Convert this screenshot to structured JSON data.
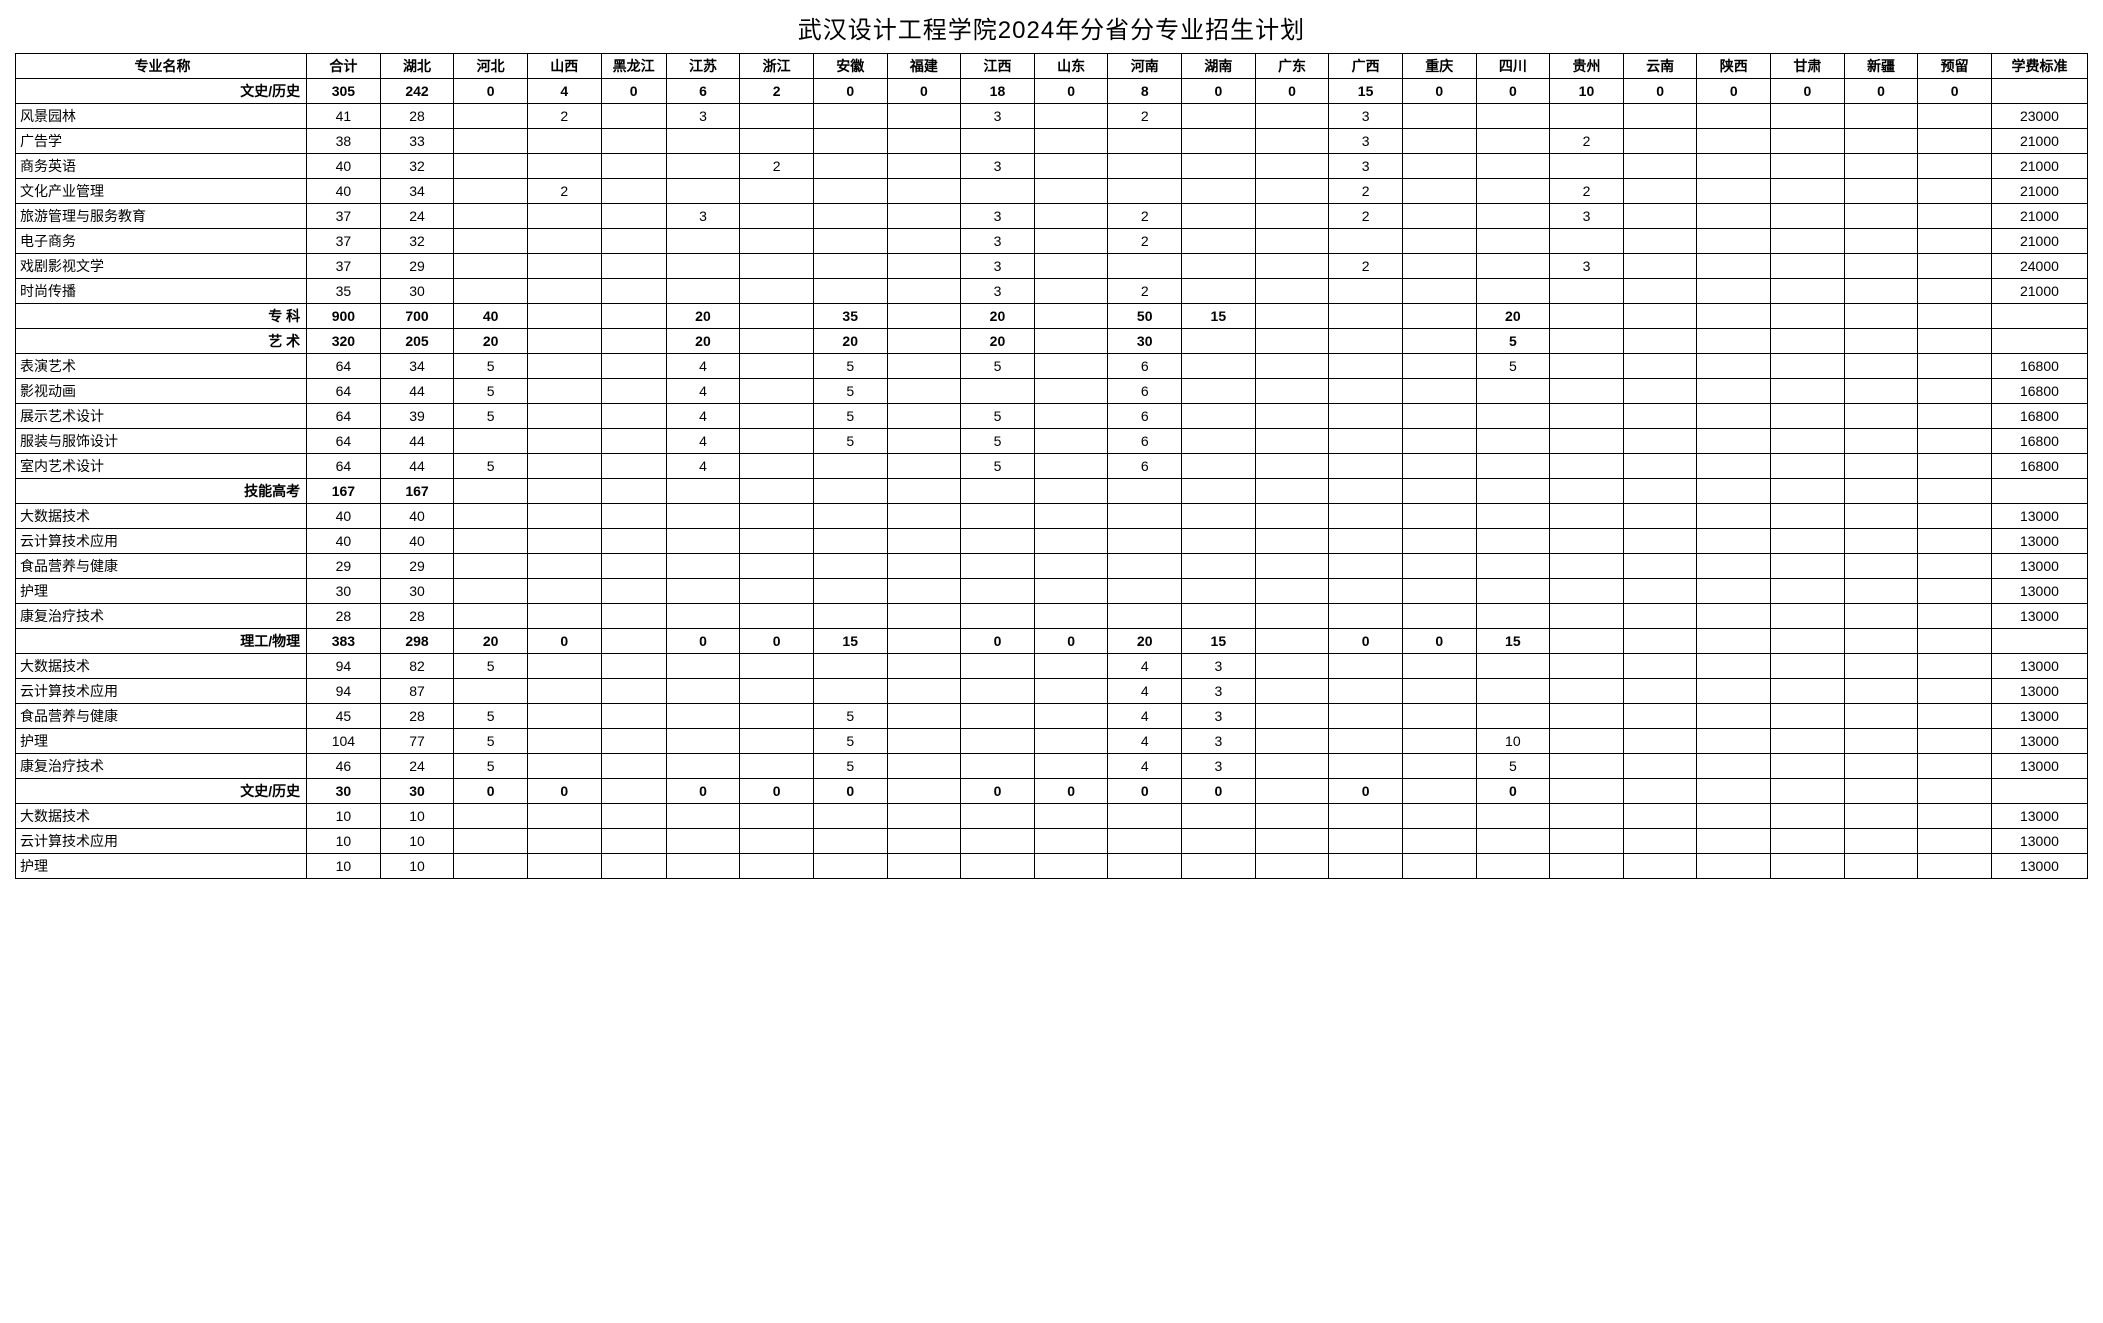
{
  "title": "武汉设计工程学院2024年分省分专业招生计划",
  "columns": [
    "专业名称",
    "合计",
    "湖北",
    "河北",
    "山西",
    "黑龙江",
    "江苏",
    "浙江",
    "安徽",
    "福建",
    "江西",
    "山东",
    "河南",
    "湖南",
    "广东",
    "广西",
    "重庆",
    "四川",
    "贵州",
    "云南",
    "陕西",
    "甘肃",
    "新疆",
    "预留",
    "学费标准"
  ],
  "column_classes": [
    "col-major",
    "col-num",
    "col-num",
    "col-num",
    "col-num",
    "col-small",
    "col-num",
    "col-num",
    "col-num",
    "col-num",
    "col-num",
    "col-num",
    "col-num",
    "col-num",
    "col-num",
    "col-num",
    "col-num",
    "col-num",
    "col-num",
    "col-num",
    "col-num",
    "col-num",
    "col-num",
    "col-num",
    "col-fee"
  ],
  "rows": [
    {
      "section": true,
      "cells": [
        "文史/历史",
        "305",
        "242",
        "0",
        "4",
        "0",
        "6",
        "2",
        "0",
        "0",
        "18",
        "0",
        "8",
        "0",
        "0",
        "15",
        "0",
        "0",
        "10",
        "0",
        "0",
        "0",
        "0",
        "0",
        ""
      ]
    },
    {
      "section": false,
      "cells": [
        "风景园林",
        "41",
        "28",
        "",
        "2",
        "",
        "3",
        "",
        "",
        "",
        "3",
        "",
        "2",
        "",
        "",
        "3",
        "",
        "",
        "",
        "",
        "",
        "",
        "",
        "",
        "23000"
      ]
    },
    {
      "section": false,
      "cells": [
        "广告学",
        "38",
        "33",
        "",
        "",
        "",
        "",
        "",
        "",
        "",
        "",
        "",
        "",
        "",
        "",
        "3",
        "",
        "",
        "2",
        "",
        "",
        "",
        "",
        "",
        "21000"
      ]
    },
    {
      "section": false,
      "cells": [
        "商务英语",
        "40",
        "32",
        "",
        "",
        "",
        "",
        "2",
        "",
        "",
        "3",
        "",
        "",
        "",
        "",
        "3",
        "",
        "",
        "",
        "",
        "",
        "",
        "",
        "",
        "21000"
      ]
    },
    {
      "section": false,
      "cells": [
        "文化产业管理",
        "40",
        "34",
        "",
        "2",
        "",
        "",
        "",
        "",
        "",
        "",
        "",
        "",
        "",
        "",
        "2",
        "",
        "",
        "2",
        "",
        "",
        "",
        "",
        "",
        "21000"
      ]
    },
    {
      "section": false,
      "cells": [
        "旅游管理与服务教育",
        "37",
        "24",
        "",
        "",
        "",
        "3",
        "",
        "",
        "",
        "3",
        "",
        "2",
        "",
        "",
        "2",
        "",
        "",
        "3",
        "",
        "",
        "",
        "",
        "",
        "21000"
      ]
    },
    {
      "section": false,
      "cells": [
        "电子商务",
        "37",
        "32",
        "",
        "",
        "",
        "",
        "",
        "",
        "",
        "3",
        "",
        "2",
        "",
        "",
        "",
        "",
        "",
        "",
        "",
        "",
        "",
        "",
        "",
        "21000"
      ]
    },
    {
      "section": false,
      "cells": [
        "戏剧影视文学",
        "37",
        "29",
        "",
        "",
        "",
        "",
        "",
        "",
        "",
        "3",
        "",
        "",
        "",
        "",
        "2",
        "",
        "",
        "3",
        "",
        "",
        "",
        "",
        "",
        "24000"
      ]
    },
    {
      "section": false,
      "cells": [
        "时尚传播",
        "35",
        "30",
        "",
        "",
        "",
        "",
        "",
        "",
        "",
        "3",
        "",
        "2",
        "",
        "",
        "",
        "",
        "",
        "",
        "",
        "",
        "",
        "",
        "",
        "21000"
      ]
    },
    {
      "section": true,
      "cells": [
        "专 科",
        "900",
        "700",
        "40",
        "",
        "",
        "20",
        "",
        "35",
        "",
        "20",
        "",
        "50",
        "15",
        "",
        "",
        "",
        "20",
        "",
        "",
        "",
        "",
        "",
        "",
        ""
      ]
    },
    {
      "section": true,
      "cells": [
        "艺 术",
        "320",
        "205",
        "20",
        "",
        "",
        "20",
        "",
        "20",
        "",
        "20",
        "",
        "30",
        "",
        "",
        "",
        "",
        "5",
        "",
        "",
        "",
        "",
        "",
        "",
        ""
      ]
    },
    {
      "section": false,
      "cells": [
        "表演艺术",
        "64",
        "34",
        "5",
        "",
        "",
        "4",
        "",
        "5",
        "",
        "5",
        "",
        "6",
        "",
        "",
        "",
        "",
        "5",
        "",
        "",
        "",
        "",
        "",
        "",
        "16800"
      ]
    },
    {
      "section": false,
      "cells": [
        "影视动画",
        "64",
        "44",
        "5",
        "",
        "",
        "4",
        "",
        "5",
        "",
        "",
        "",
        "6",
        "",
        "",
        "",
        "",
        "",
        "",
        "",
        "",
        "",
        "",
        "",
        "16800"
      ]
    },
    {
      "section": false,
      "cells": [
        "展示艺术设计",
        "64",
        "39",
        "5",
        "",
        "",
        "4",
        "",
        "5",
        "",
        "5",
        "",
        "6",
        "",
        "",
        "",
        "",
        "",
        "",
        "",
        "",
        "",
        "",
        "",
        "16800"
      ]
    },
    {
      "section": false,
      "cells": [
        "服装与服饰设计",
        "64",
        "44",
        "",
        "",
        "",
        "4",
        "",
        "5",
        "",
        "5",
        "",
        "6",
        "",
        "",
        "",
        "",
        "",
        "",
        "",
        "",
        "",
        "",
        "",
        "16800"
      ]
    },
    {
      "section": false,
      "cells": [
        "室内艺术设计",
        "64",
        "44",
        "5",
        "",
        "",
        "4",
        "",
        "",
        "",
        "5",
        "",
        "6",
        "",
        "",
        "",
        "",
        "",
        "",
        "",
        "",
        "",
        "",
        "",
        "16800"
      ]
    },
    {
      "section": true,
      "cells": [
        "技能高考",
        "167",
        "167",
        "",
        "",
        "",
        "",
        "",
        "",
        "",
        "",
        "",
        "",
        "",
        "",
        "",
        "",
        "",
        "",
        "",
        "",
        "",
        "",
        "",
        ""
      ]
    },
    {
      "section": false,
      "cells": [
        "大数据技术",
        "40",
        "40",
        "",
        "",
        "",
        "",
        "",
        "",
        "",
        "",
        "",
        "",
        "",
        "",
        "",
        "",
        "",
        "",
        "",
        "",
        "",
        "",
        "",
        "13000"
      ]
    },
    {
      "section": false,
      "cells": [
        "云计算技术应用",
        "40",
        "40",
        "",
        "",
        "",
        "",
        "",
        "",
        "",
        "",
        "",
        "",
        "",
        "",
        "",
        "",
        "",
        "",
        "",
        "",
        "",
        "",
        "",
        "13000"
      ]
    },
    {
      "section": false,
      "cells": [
        "食品营养与健康",
        "29",
        "29",
        "",
        "",
        "",
        "",
        "",
        "",
        "",
        "",
        "",
        "",
        "",
        "",
        "",
        "",
        "",
        "",
        "",
        "",
        "",
        "",
        "",
        "13000"
      ]
    },
    {
      "section": false,
      "cells": [
        "护理",
        "30",
        "30",
        "",
        "",
        "",
        "",
        "",
        "",
        "",
        "",
        "",
        "",
        "",
        "",
        "",
        "",
        "",
        "",
        "",
        "",
        "",
        "",
        "",
        "13000"
      ]
    },
    {
      "section": false,
      "cells": [
        "康复治疗技术",
        "28",
        "28",
        "",
        "",
        "",
        "",
        "",
        "",
        "",
        "",
        "",
        "",
        "",
        "",
        "",
        "",
        "",
        "",
        "",
        "",
        "",
        "",
        "",
        "13000"
      ]
    },
    {
      "section": true,
      "cells": [
        "理工/物理",
        "383",
        "298",
        "20",
        "0",
        "",
        "0",
        "0",
        "15",
        "",
        "0",
        "0",
        "20",
        "15",
        "",
        "0",
        "0",
        "15",
        "",
        "",
        "",
        "",
        "",
        "",
        ""
      ]
    },
    {
      "section": false,
      "cells": [
        "大数据技术",
        "94",
        "82",
        "5",
        "",
        "",
        "",
        "",
        "",
        "",
        "",
        "",
        "4",
        "3",
        "",
        "",
        "",
        "",
        "",
        "",
        "",
        "",
        "",
        "",
        "13000"
      ]
    },
    {
      "section": false,
      "cells": [
        "云计算技术应用",
        "94",
        "87",
        "",
        "",
        "",
        "",
        "",
        "",
        "",
        "",
        "",
        "4",
        "3",
        "",
        "",
        "",
        "",
        "",
        "",
        "",
        "",
        "",
        "",
        "13000"
      ]
    },
    {
      "section": false,
      "cells": [
        "食品营养与健康",
        "45",
        "28",
        "5",
        "",
        "",
        "",
        "",
        "5",
        "",
        "",
        "",
        "4",
        "3",
        "",
        "",
        "",
        "",
        "",
        "",
        "",
        "",
        "",
        "",
        "13000"
      ]
    },
    {
      "section": false,
      "cells": [
        "护理",
        "104",
        "77",
        "5",
        "",
        "",
        "",
        "",
        "5",
        "",
        "",
        "",
        "4",
        "3",
        "",
        "",
        "",
        "10",
        "",
        "",
        "",
        "",
        "",
        "",
        "13000"
      ]
    },
    {
      "section": false,
      "cells": [
        "康复治疗技术",
        "46",
        "24",
        "5",
        "",
        "",
        "",
        "",
        "5",
        "",
        "",
        "",
        "4",
        "3",
        "",
        "",
        "",
        "5",
        "",
        "",
        "",
        "",
        "",
        "",
        "13000"
      ]
    },
    {
      "section": true,
      "cells": [
        "文史/历史",
        "30",
        "30",
        "0",
        "0",
        "",
        "0",
        "0",
        "0",
        "",
        "0",
        "0",
        "0",
        "0",
        "",
        "0",
        "",
        "0",
        "",
        "",
        "",
        "",
        "",
        "",
        ""
      ]
    },
    {
      "section": false,
      "cells": [
        "大数据技术",
        "10",
        "10",
        "",
        "",
        "",
        "",
        "",
        "",
        "",
        "",
        "",
        "",
        "",
        "",
        "",
        "",
        "",
        "",
        "",
        "",
        "",
        "",
        "",
        "13000"
      ]
    },
    {
      "section": false,
      "cells": [
        "云计算技术应用",
        "10",
        "10",
        "",
        "",
        "",
        "",
        "",
        "",
        "",
        "",
        "",
        "",
        "",
        "",
        "",
        "",
        "",
        "",
        "",
        "",
        "",
        "",
        "",
        "13000"
      ]
    },
    {
      "section": false,
      "cells": [
        "护理",
        "10",
        "10",
        "",
        "",
        "",
        "",
        "",
        "",
        "",
        "",
        "",
        "",
        "",
        "",
        "",
        "",
        "",
        "",
        "",
        "",
        "",
        "",
        "",
        "13000"
      ]
    }
  ]
}
